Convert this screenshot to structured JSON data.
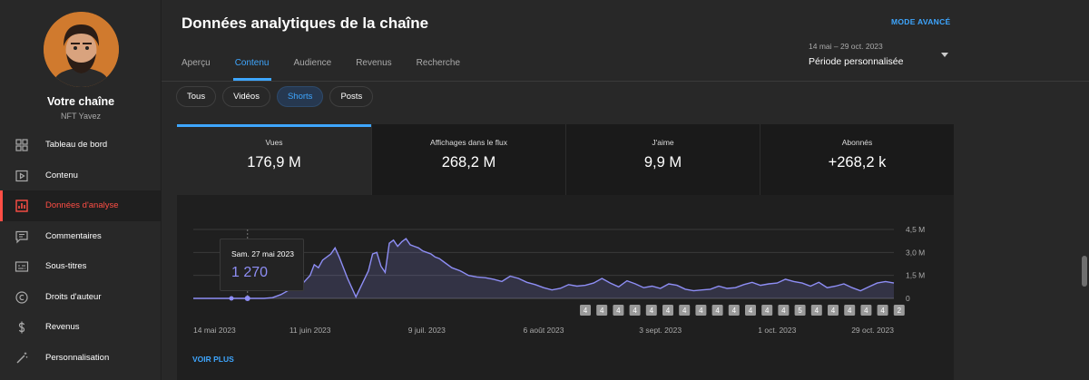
{
  "sidebar": {
    "channel_title": "Votre chaîne",
    "channel_name": "NFT Yavez",
    "items": [
      {
        "label": "Tableau de bord",
        "icon": "dashboard-icon"
      },
      {
        "label": "Contenu",
        "icon": "content-icon"
      },
      {
        "label": "Données d'analyse",
        "icon": "analytics-icon",
        "active": true
      },
      {
        "label": "Commentaires",
        "icon": "comments-icon"
      },
      {
        "label": "Sous-titres",
        "icon": "subtitles-icon"
      },
      {
        "label": "Droits d'auteur",
        "icon": "copyright-icon"
      },
      {
        "label": "Revenus",
        "icon": "dollar-icon"
      },
      {
        "label": "Personnalisation",
        "icon": "magic-wand-icon"
      }
    ]
  },
  "header": {
    "title": "Données analytiques de la chaîne",
    "advanced_mode": "MODE AVANCÉ",
    "tabs": [
      "Aperçu",
      "Contenu",
      "Audience",
      "Revenus",
      "Recherche"
    ],
    "active_tab": 1,
    "period_range": "14 mai – 29 oct. 2023",
    "period_label": "Période personnalisée"
  },
  "chips": [
    "Tous",
    "Vidéos",
    "Shorts",
    "Posts"
  ],
  "active_chip": 2,
  "metrics": [
    {
      "label": "Vues",
      "value": "176,9 M"
    },
    {
      "label": "Affichages dans le flux",
      "value": "268,2 M"
    },
    {
      "label": "J'aime",
      "value": "9,9 M"
    },
    {
      "label": "Abonnés",
      "value": "+268,2 k"
    }
  ],
  "tooltip": {
    "date": "Sam. 27 mai 2023",
    "value": "1 270"
  },
  "voir_plus": "VOIR PLUS",
  "colors": {
    "accent": "#3ea6ff",
    "active_nav": "#ff4e45",
    "series": "#8e8ef5"
  },
  "chart_data": {
    "type": "area",
    "title": "Vues",
    "x_unit": "day index from 14 mai 2023",
    "x_range": [
      0,
      168
    ],
    "ylim": [
      0,
      4500000
    ],
    "ytick_labels": [
      "0",
      "1,5 M",
      "3,0 M",
      "4,5 M"
    ],
    "ytick_values": [
      0,
      1500000,
      3000000,
      4500000
    ],
    "xtick_labels": [
      "14 mai 2023",
      "11 juin 2023",
      "9 juil. 2023",
      "6 août 2023",
      "3 sept. 2023",
      "1 oct. 2023",
      "29 oct. 2023"
    ],
    "xtick_days": [
      0,
      28,
      56,
      84,
      112,
      140,
      168
    ],
    "series": [
      {
        "name": "Vues",
        "x": [
          0,
          7,
          10,
          13,
          15,
          17,
          19,
          21,
          23,
          24,
          26,
          27,
          28,
          29,
          30,
          31,
          33,
          34,
          35,
          37,
          39,
          42,
          43,
          44,
          45,
          46,
          47,
          48,
          49,
          50,
          51,
          52,
          53,
          54,
          55,
          56,
          57,
          58,
          59,
          60,
          62,
          64,
          66,
          68,
          70,
          72,
          74,
          76,
          78,
          80,
          82,
          84,
          86,
          88,
          90,
          92,
          94,
          96,
          98,
          100,
          102,
          104,
          106,
          108,
          110,
          112,
          114,
          116,
          118,
          120,
          122,
          124,
          126,
          128,
          130,
          132,
          134,
          136,
          138,
          140,
          142,
          144,
          146,
          148,
          150,
          152,
          154,
          156,
          158,
          160,
          162,
          164,
          166,
          168
        ],
        "values": [
          0,
          0,
          0,
          0,
          0,
          0,
          50000,
          250000,
          550000,
          700000,
          900000,
          1200000,
          1500000,
          2200000,
          2000000,
          2500000,
          2900000,
          3300000,
          2700000,
          1300000,
          100000,
          1800000,
          2900000,
          3000000,
          2100000,
          1700000,
          3600000,
          3800000,
          3400000,
          3700000,
          3900000,
          3500000,
          3400000,
          3300000,
          3100000,
          3000000,
          2900000,
          2700000,
          2600000,
          2400000,
          2000000,
          1800000,
          1500000,
          1400000,
          1350000,
          1250000,
          1100000,
          1450000,
          1300000,
          1050000,
          900000,
          700000,
          550000,
          650000,
          900000,
          800000,
          850000,
          1000000,
          1300000,
          1000000,
          750000,
          1150000,
          950000,
          700000,
          800000,
          650000,
          950000,
          850000,
          600000,
          500000,
          550000,
          600000,
          800000,
          650000,
          700000,
          900000,
          1050000,
          850000,
          950000,
          1000000,
          1250000,
          1100000,
          1000000,
          800000,
          1050000,
          700000,
          800000,
          950000,
          700000,
          500000,
          750000,
          1000000,
          1100000,
          1000000
        ]
      }
    ],
    "markers": [
      "4",
      "4",
      "4",
      "4",
      "4",
      "4",
      "4",
      "4",
      "4",
      "4",
      "4",
      "4",
      "4",
      "5",
      "4",
      "4",
      "4",
      "4",
      "4",
      "2"
    ],
    "tooltip_day": 13
  }
}
